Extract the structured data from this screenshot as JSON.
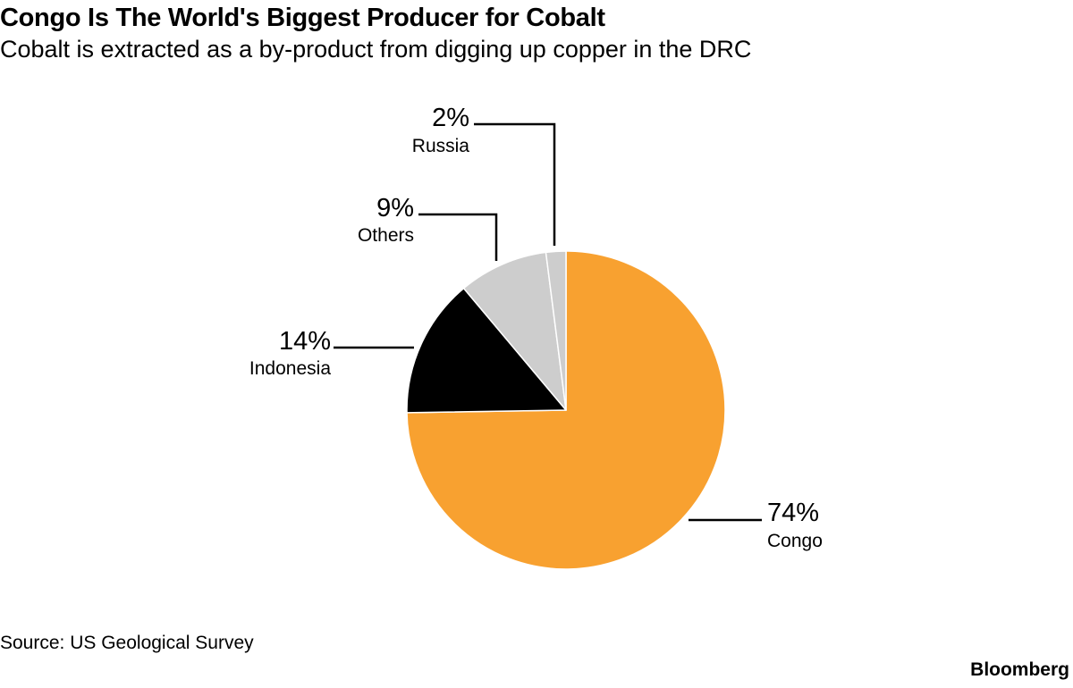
{
  "chart_data": {
    "type": "pie",
    "title": "Congo Is The World's Biggest Producer for Cobalt",
    "subtitle": "Cobalt is extracted as a by-product from digging up copper in the DRC",
    "slices": [
      {
        "label": "Congo",
        "value": 74,
        "value_label": "74%",
        "color": "#F8A130"
      },
      {
        "label": "Indonesia",
        "value": 14,
        "value_label": "14%",
        "color": "#000000"
      },
      {
        "label": "Others",
        "value": 9,
        "value_label": "9%",
        "color": "#CDCDCD"
      },
      {
        "label": "Russia",
        "value": 2,
        "value_label": "2%",
        "color": "#CDCDCD"
      }
    ],
    "start": "12 o'clock",
    "direction": "clockwise"
  },
  "footer": {
    "source": "Source: US Geological Survey",
    "brand": "Bloomberg"
  }
}
